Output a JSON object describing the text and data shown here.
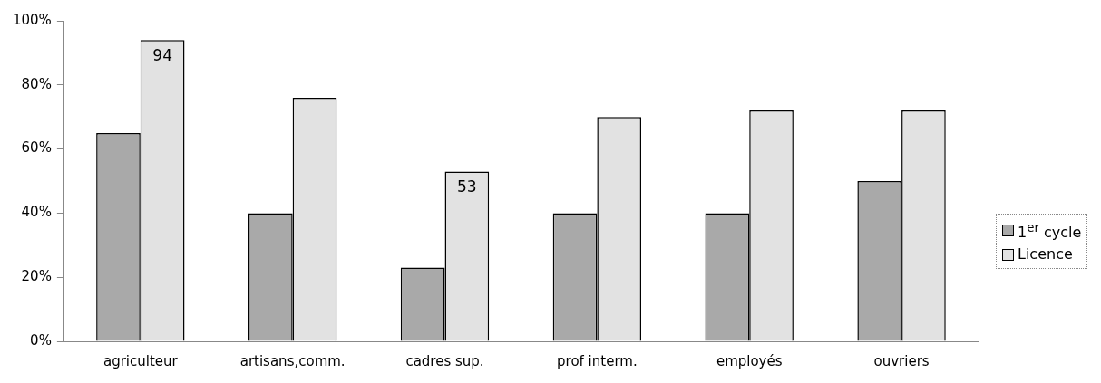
{
  "chart_data": {
    "type": "bar",
    "categories": [
      "agriculteur",
      "artisans,comm.",
      "cadres sup.",
      "prof interm.",
      "employés",
      "ouvriers"
    ],
    "series": [
      {
        "name": "1$^{er}$ cycle",
        "color": "#a9a9a9",
        "values": [
          65,
          40,
          23,
          40,
          40,
          50
        ]
      },
      {
        "name": "Licence",
        "color": "#e2e2e2",
        "values": [
          94,
          76,
          53,
          70,
          72,
          72
        ],
        "value_labels": [
          "94",
          null,
          "53",
          null,
          null,
          null
        ]
      }
    ],
    "ylim": [
      0,
      100
    ],
    "yticks": [
      {
        "value": 0,
        "label": "0%"
      },
      {
        "value": 20,
        "label": "20%"
      },
      {
        "value": 40,
        "label": "40%"
      },
      {
        "value": 60,
        "label": "60%"
      },
      {
        "value": 80,
        "label": "80%"
      },
      {
        "value": 100,
        "label": "100%"
      }
    ],
    "grid": false,
    "legend": "right"
  }
}
